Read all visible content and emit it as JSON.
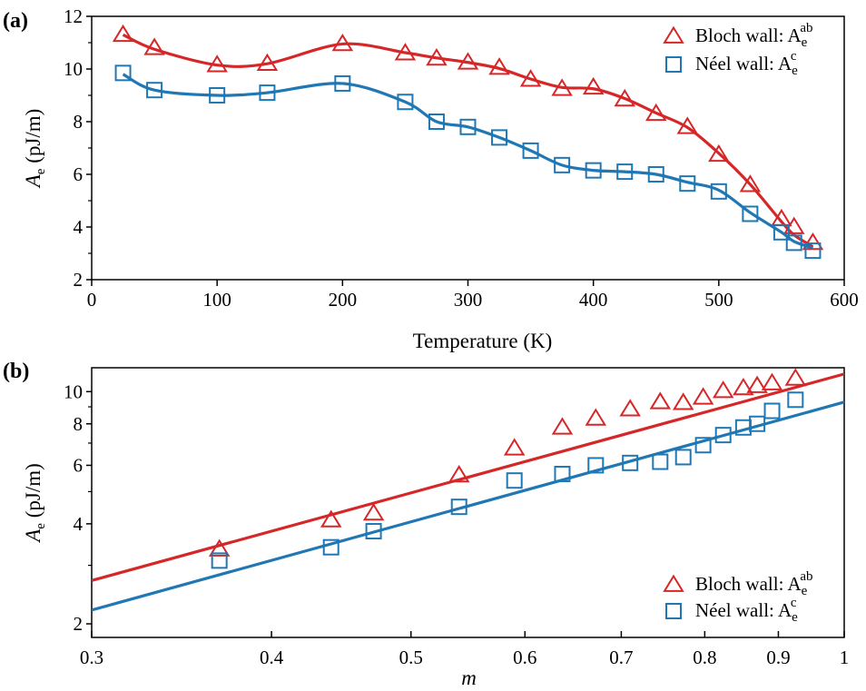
{
  "chart_data": [
    {
      "panel_label": "(a)",
      "type": "line",
      "xlabel": "Temperature (K)",
      "ylabel_main": "A",
      "ylabel_sub": "e",
      "ylabel_unit": " (pJ/m)",
      "xlim": [
        0,
        600
      ],
      "ylim": [
        2,
        12
      ],
      "xticks": [
        0,
        100,
        200,
        300,
        400,
        500,
        600
      ],
      "yticks": [
        2,
        4,
        6,
        8,
        10,
        12
      ],
      "legend_position": "top-right",
      "series": [
        {
          "legend_main": "Bloch wall: A",
          "legend_sub": "e",
          "legend_sup": "ab",
          "color": "#d62728",
          "marker": "triangle",
          "x": [
            25,
            50,
            100,
            140,
            200,
            250,
            275,
            300,
            325,
            350,
            375,
            400,
            425,
            450,
            475,
            500,
            525,
            550,
            560,
            575
          ],
          "y": [
            11.3,
            10.8,
            10.15,
            10.2,
            10.95,
            10.6,
            10.4,
            10.25,
            10.05,
            9.6,
            9.25,
            9.3,
            8.85,
            8.3,
            7.8,
            6.75,
            5.6,
            4.3,
            4.0,
            3.4
          ],
          "curve_y": [
            11.3,
            10.75,
            10.15,
            10.2,
            10.95,
            10.62,
            10.42,
            10.25,
            10.02,
            9.62,
            9.3,
            9.25,
            8.88,
            8.33,
            7.78,
            6.8,
            5.62,
            4.2,
            3.7,
            3.25
          ]
        },
        {
          "legend_main": "Néel wall: A",
          "legend_sub": "e",
          "legend_sup": "c",
          "color": "#1f77b4",
          "marker": "square",
          "x": [
            25,
            50,
            100,
            140,
            200,
            250,
            275,
            300,
            325,
            350,
            375,
            400,
            425,
            450,
            475,
            500,
            525,
            550,
            560,
            575
          ],
          "y": [
            9.85,
            9.2,
            9.0,
            9.1,
            9.45,
            8.75,
            8.0,
            7.8,
            7.4,
            6.9,
            6.35,
            6.15,
            6.1,
            6.0,
            5.65,
            5.35,
            4.5,
            3.8,
            3.4,
            3.1
          ],
          "curve_y": [
            9.8,
            9.2,
            9.0,
            9.1,
            9.45,
            8.75,
            8.0,
            7.8,
            7.4,
            6.9,
            6.35,
            6.15,
            6.1,
            6.0,
            5.7,
            5.4,
            4.55,
            3.8,
            3.45,
            3.2
          ]
        }
      ]
    },
    {
      "panel_label": "(b)",
      "type": "scatter",
      "xlabel": "m",
      "ylabel_main": "A",
      "ylabel_sub": "e",
      "ylabel_unit": " (pJ/m)",
      "x_scale": "log",
      "y_scale": "log",
      "xlim": [
        0.3,
        1
      ],
      "ylim": [
        1.82,
        11.8
      ],
      "xticks": [
        0.3,
        0.4,
        0.5,
        0.6,
        0.7,
        0.8,
        0.9,
        1
      ],
      "xtick_labels": [
        "0.3",
        "0.4",
        "0.5",
        "0.6",
        "0.7",
        "0.8",
        "0.9",
        "1"
      ],
      "yticks": [
        2,
        4,
        6,
        8,
        10
      ],
      "legend_position": "bottom-right",
      "series": [
        {
          "legend_main": "Bloch wall: A",
          "legend_sub": "e",
          "legend_sup": "ab",
          "color": "#d62728",
          "marker": "triangle",
          "x": [
            0.368,
            0.44,
            0.471,
            0.54,
            0.59,
            0.637,
            0.672,
            0.71,
            0.745,
            0.773,
            0.798,
            0.824,
            0.851,
            0.87,
            0.891,
            0.925
          ],
          "y": [
            3.35,
            4.1,
            4.3,
            5.6,
            6.75,
            7.8,
            8.3,
            8.85,
            9.3,
            9.25,
            9.6,
            10.05,
            10.25,
            10.4,
            10.6,
            10.95
          ],
          "fit_x": [
            0.3,
            1
          ],
          "fit_y": [
            2.7,
            11.3
          ]
        },
        {
          "legend_main": "Néel wall: A",
          "legend_sub": "e",
          "legend_sup": "c",
          "color": "#1f77b4",
          "marker": "square",
          "x": [
            0.368,
            0.44,
            0.471,
            0.54,
            0.59,
            0.637,
            0.672,
            0.71,
            0.745,
            0.773,
            0.798,
            0.824,
            0.851,
            0.87,
            0.891,
            0.925
          ],
          "y": [
            3.1,
            3.4,
            3.8,
            4.5,
            5.4,
            5.65,
            6.0,
            6.1,
            6.15,
            6.35,
            6.9,
            7.4,
            7.8,
            8.0,
            8.75,
            9.45
          ],
          "fit_x": [
            0.3,
            1
          ],
          "fit_y": [
            2.2,
            9.3
          ]
        }
      ]
    }
  ]
}
